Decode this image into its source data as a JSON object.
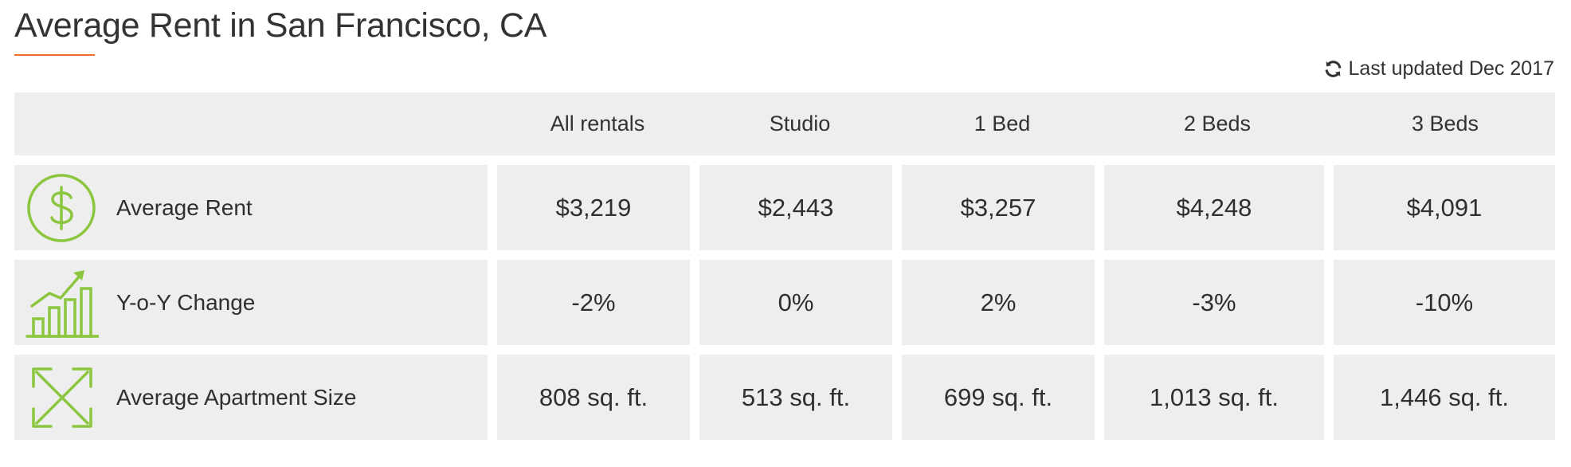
{
  "title": "Average Rent in San Francisco, CA",
  "last_updated": "Last updated Dec 2017",
  "accent_color": "#f26b2a",
  "icon_color": "#8cc63f",
  "columns": [
    "All rentals",
    "Studio",
    "1 Bed",
    "2 Beds",
    "3 Beds"
  ],
  "rows": [
    {
      "icon": "dollar-circle-icon",
      "label": "Average Rent",
      "values": [
        "$3,219",
        "$2,443",
        "$3,257",
        "$4,248",
        "$4,091"
      ]
    },
    {
      "icon": "growth-chart-icon",
      "label": "Y-o-Y Change",
      "values": [
        "-2%",
        "0%",
        "2%",
        "-3%",
        "-10%"
      ]
    },
    {
      "icon": "expand-arrows-icon",
      "label": "Average Apartment Size",
      "values": [
        "808 sq. ft.",
        "513 sq. ft.",
        "699 sq. ft.",
        "1,013 sq. ft.",
        "1,446 sq. ft."
      ]
    }
  ]
}
